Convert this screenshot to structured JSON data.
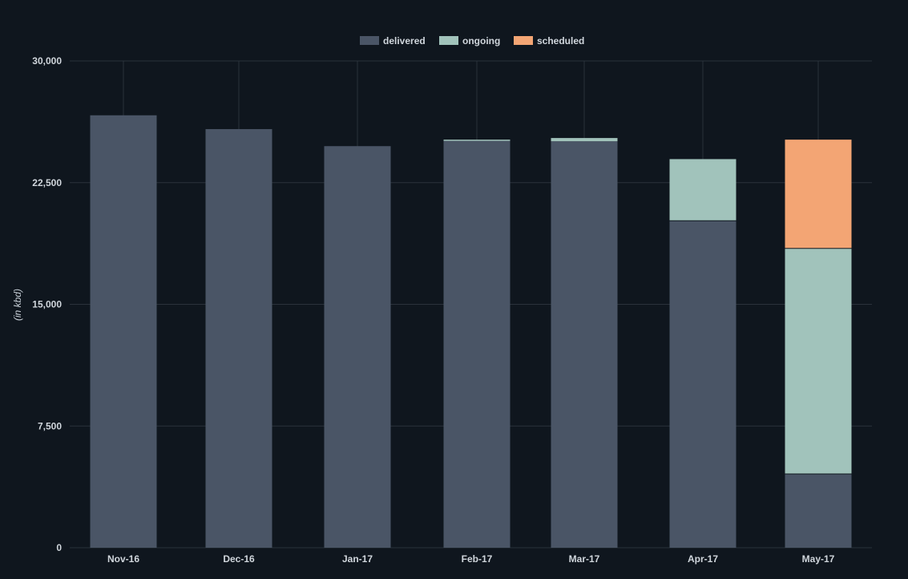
{
  "chart_data": {
    "type": "bar",
    "stacked": true,
    "title": "",
    "xlabel": "",
    "ylabel": "(in kbd)",
    "ylim": [
      0,
      30000
    ],
    "yticks": [
      0,
      7500,
      15000,
      22500,
      30000
    ],
    "ytick_labels": [
      "0",
      "7,500",
      "15,000",
      "22,500",
      "30,000"
    ],
    "categories": [
      "Nov-16",
      "Dec-16",
      "Jan-17",
      "Feb-17",
      "Mar-17",
      "Apr-17",
      "May-17"
    ],
    "series": [
      {
        "name": "delivered",
        "color": "#4a5566",
        "values": [
          26650,
          25800,
          24750,
          25100,
          25050,
          20150,
          4550
        ]
      },
      {
        "name": "ongoing",
        "color": "#a1c3bb",
        "values": [
          0,
          0,
          0,
          50,
          200,
          3800,
          13900
        ]
      },
      {
        "name": "scheduled",
        "color": "#f3a574",
        "values": [
          0,
          0,
          0,
          0,
          0,
          0,
          6700
        ]
      }
    ],
    "grid": true,
    "legend_position": "top-center"
  }
}
